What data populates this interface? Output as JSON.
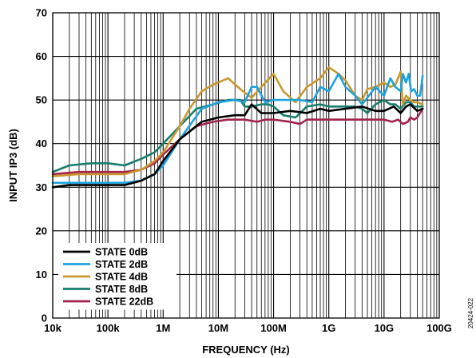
{
  "figure_id": "20424-022",
  "chart_data": {
    "type": "line",
    "xlabel": "FREQUENCY (Hz)",
    "ylabel": "INPUT IP3 (dB)",
    "xscale": "log",
    "xlim": [
      10000,
      100000000000
    ],
    "ylim": [
      0,
      70
    ],
    "grid": true,
    "legend_position": "bottom-left",
    "x_ticks": [
      {
        "value": 10000,
        "label": "10k"
      },
      {
        "value": 100000,
        "label": "100k"
      },
      {
        "value": 1000000,
        "label": "1M"
      },
      {
        "value": 10000000,
        "label": "10M"
      },
      {
        "value": 100000000,
        "label": "100M"
      },
      {
        "value": 1000000000,
        "label": "1G"
      },
      {
        "value": 10000000000,
        "label": "10G"
      },
      {
        "value": 100000000000,
        "label": "100G"
      }
    ],
    "y_ticks": [
      {
        "value": 0,
        "label": "0"
      },
      {
        "value": 10,
        "label": "10"
      },
      {
        "value": 20,
        "label": "20"
      },
      {
        "value": 30,
        "label": "30"
      },
      {
        "value": 40,
        "label": "40"
      },
      {
        "value": 50,
        "label": "50"
      },
      {
        "value": 60,
        "label": "60"
      },
      {
        "value": 70,
        "label": "70"
      }
    ],
    "series": [
      {
        "name": "STATE 0dB",
        "color": "#000000",
        "points": [
          [
            10000,
            30
          ],
          [
            20000,
            30.5
          ],
          [
            50000,
            30.5
          ],
          [
            200000,
            30.5
          ],
          [
            400000,
            31.5
          ],
          [
            700000,
            33
          ],
          [
            1000000,
            36
          ],
          [
            2000000,
            41
          ],
          [
            5000000,
            45
          ],
          [
            10000000,
            46
          ],
          [
            20000000,
            46.5
          ],
          [
            30000000,
            46.5
          ],
          [
            40000000,
            49
          ],
          [
            60000000,
            47
          ],
          [
            100000000,
            47
          ],
          [
            200000000,
            47.5
          ],
          [
            400000000,
            47
          ],
          [
            700000000,
            48
          ],
          [
            1000000000,
            47.5
          ],
          [
            2000000000,
            48
          ],
          [
            4000000000,
            48.5
          ],
          [
            7000000000,
            47.5
          ],
          [
            10000000000,
            47.5
          ],
          [
            15000000000,
            48.5
          ],
          [
            20000000000,
            47
          ],
          [
            25000000000,
            48.5
          ],
          [
            30000000000,
            49
          ],
          [
            40000000000,
            47.5
          ],
          [
            50000000000,
            48
          ]
        ]
      },
      {
        "name": "STATE 2dB",
        "color": "#1ca3dd",
        "points": [
          [
            10000,
            31
          ],
          [
            30000,
            31
          ],
          [
            100000,
            31
          ],
          [
            200000,
            31
          ],
          [
            400000,
            31.5
          ],
          [
            700000,
            33
          ],
          [
            1000000,
            35
          ],
          [
            2000000,
            41
          ],
          [
            5000000,
            48
          ],
          [
            10000000,
            49.5
          ],
          [
            20000000,
            50
          ],
          [
            30000000,
            49.5
          ],
          [
            40000000,
            53
          ],
          [
            50000000,
            53
          ],
          [
            70000000,
            49.5
          ],
          [
            100000000,
            50
          ],
          [
            200000000,
            50
          ],
          [
            300000000,
            50
          ],
          [
            500000000,
            49.5
          ],
          [
            700000000,
            53
          ],
          [
            1000000000,
            52
          ],
          [
            1500000000,
            56
          ],
          [
            2000000000,
            53
          ],
          [
            3000000000,
            51
          ],
          [
            4000000000,
            49
          ],
          [
            5000000000,
            50.5
          ],
          [
            7000000000,
            53
          ],
          [
            10000000000,
            51
          ],
          [
            13000000000,
            55
          ],
          [
            16000000000,
            53
          ],
          [
            20000000000,
            52
          ],
          [
            22000000000,
            56
          ],
          [
            25000000000,
            54
          ],
          [
            28000000000,
            56
          ],
          [
            31000000000,
            52
          ],
          [
            35000000000,
            52.5
          ],
          [
            40000000000,
            51
          ],
          [
            45000000000,
            51
          ],
          [
            50000000000,
            55.5
          ]
        ]
      },
      {
        "name": "STATE 4dB",
        "color": "#c8992e",
        "points": [
          [
            10000,
            32.5
          ],
          [
            30000,
            33
          ],
          [
            100000,
            33
          ],
          [
            200000,
            33
          ],
          [
            400000,
            34
          ],
          [
            700000,
            36
          ],
          [
            1000000,
            38
          ],
          [
            2000000,
            44
          ],
          [
            3000000,
            48
          ],
          [
            5000000,
            52
          ],
          [
            8000000,
            53.5
          ],
          [
            15000000,
            55
          ],
          [
            25000000,
            52.5
          ],
          [
            40000000,
            50.5
          ],
          [
            60000000,
            53
          ],
          [
            100000000,
            56
          ],
          [
            150000000,
            52
          ],
          [
            250000000,
            49.5
          ],
          [
            400000000,
            53
          ],
          [
            700000000,
            55
          ],
          [
            1000000000,
            57.5
          ],
          [
            1500000000,
            56
          ],
          [
            2000000000,
            54.5
          ],
          [
            3000000000,
            51
          ],
          [
            4000000000,
            50
          ],
          [
            5000000000,
            52.5
          ],
          [
            7000000000,
            53
          ],
          [
            10000000000,
            54
          ],
          [
            13000000000,
            53
          ],
          [
            16000000000,
            53.5
          ],
          [
            20000000000,
            56.5
          ],
          [
            22000000000,
            49
          ],
          [
            25000000000,
            51
          ],
          [
            30000000000,
            50
          ],
          [
            35000000000,
            49.5
          ],
          [
            40000000000,
            49.5
          ],
          [
            50000000000,
            49
          ]
        ]
      },
      {
        "name": "STATE 8dB",
        "color": "#167d6e",
        "points": [
          [
            10000,
            33.5
          ],
          [
            20000,
            35
          ],
          [
            50000,
            35.5
          ],
          [
            100000,
            35.5
          ],
          [
            200000,
            35
          ],
          [
            400000,
            36.5
          ],
          [
            700000,
            38
          ],
          [
            1000000,
            40
          ],
          [
            2000000,
            44
          ],
          [
            4000000,
            48
          ],
          [
            8000000,
            49
          ],
          [
            15000000,
            50
          ],
          [
            25000000,
            50
          ],
          [
            30000000,
            48.5
          ],
          [
            40000000,
            48.5
          ],
          [
            60000000,
            49
          ],
          [
            80000000,
            49
          ],
          [
            100000000,
            48.5
          ],
          [
            150000000,
            46.5
          ],
          [
            250000000,
            46
          ],
          [
            400000000,
            48.5
          ],
          [
            700000000,
            49
          ],
          [
            1000000000,
            48.5
          ],
          [
            1500000000,
            48.5
          ],
          [
            2000000000,
            48.5
          ],
          [
            3000000000,
            48.5
          ],
          [
            4000000000,
            48
          ],
          [
            5000000000,
            47
          ],
          [
            7000000000,
            49
          ],
          [
            10000000000,
            50
          ],
          [
            13000000000,
            49
          ],
          [
            16000000000,
            49
          ],
          [
            20000000000,
            48
          ],
          [
            25000000000,
            49.5
          ],
          [
            30000000000,
            49.5
          ],
          [
            35000000000,
            48.5
          ],
          [
            40000000000,
            48.5
          ],
          [
            50000000000,
            48.5
          ]
        ]
      },
      {
        "name": "STATE 22dB",
        "color": "#a3234b",
        "points": [
          [
            10000,
            33
          ],
          [
            30000,
            33.5
          ],
          [
            100000,
            33.5
          ],
          [
            200000,
            33.5
          ],
          [
            400000,
            34
          ],
          [
            700000,
            35.5
          ],
          [
            1000000,
            37.5
          ],
          [
            2000000,
            41
          ],
          [
            4000000,
            44
          ],
          [
            8000000,
            45
          ],
          [
            15000000,
            45.5
          ],
          [
            30000000,
            45.5
          ],
          [
            50000000,
            45
          ],
          [
            70000000,
            45.5
          ],
          [
            100000000,
            45.5
          ],
          [
            200000000,
            45
          ],
          [
            300000000,
            44.5
          ],
          [
            400000000,
            45.5
          ],
          [
            700000000,
            45.5
          ],
          [
            1000000000,
            45.5
          ],
          [
            2000000000,
            45.5
          ],
          [
            4000000000,
            45.5
          ],
          [
            7000000000,
            45.5
          ],
          [
            10000000000,
            45.5
          ],
          [
            14000000000,
            45
          ],
          [
            18000000000,
            45.5
          ],
          [
            22000000000,
            44.5
          ],
          [
            27000000000,
            45
          ],
          [
            30000000000,
            46
          ],
          [
            35000000000,
            45.5
          ],
          [
            40000000000,
            46
          ],
          [
            50000000000,
            48
          ]
        ]
      }
    ]
  }
}
